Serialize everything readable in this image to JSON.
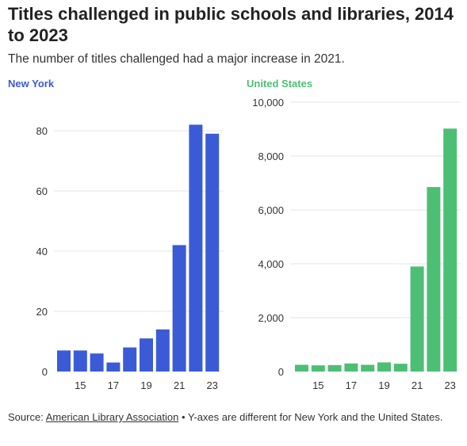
{
  "title": "Titles challenged in public schools and libraries, 2014 to 2023",
  "subtitle": "The number of titles challenged had a major increase in 2021.",
  "footer": {
    "source_prefix": "Source: ",
    "source_link": "American Library Association",
    "note": " • Y-axes are different for New York and the United States."
  },
  "chart_data": [
    {
      "type": "bar",
      "title": "New York",
      "color": "#3b5bd6",
      "years": [
        2014,
        2015,
        2016,
        2017,
        2018,
        2019,
        2020,
        2021,
        2022,
        2023
      ],
      "values": [
        7,
        7,
        6,
        3,
        8,
        11,
        14,
        42,
        82,
        79
      ],
      "ylim": [
        0,
        80
      ],
      "yticks": [
        0,
        20,
        40,
        60,
        80
      ],
      "ytick_labels": [
        "0",
        "20",
        "40",
        "60",
        "80"
      ],
      "xtick_labels": [
        {
          "year": 2015,
          "label": "15"
        },
        {
          "year": 2017,
          "label": "17"
        },
        {
          "year": 2019,
          "label": "19"
        },
        {
          "year": 2021,
          "label": "21"
        },
        {
          "year": 2023,
          "label": "23"
        }
      ],
      "grid": true
    },
    {
      "type": "bar",
      "title": "United States",
      "color": "#4dbf74",
      "years": [
        2014,
        2015,
        2016,
        2017,
        2018,
        2019,
        2020,
        2021,
        2022,
        2023
      ],
      "values": [
        250,
        230,
        240,
        300,
        250,
        340,
        290,
        3900,
        6850,
        9020
      ],
      "ylim": [
        0,
        10000
      ],
      "yticks": [
        0,
        2000,
        4000,
        6000,
        8000,
        10000
      ],
      "ytick_labels": [
        "0",
        "2,000",
        "4,000",
        "6,000",
        "8,000",
        "10,000"
      ],
      "xtick_labels": [
        {
          "year": 2015,
          "label": "15"
        },
        {
          "year": 2017,
          "label": "17"
        },
        {
          "year": 2019,
          "label": "19"
        },
        {
          "year": 2021,
          "label": "21"
        },
        {
          "year": 2023,
          "label": "23"
        }
      ],
      "grid": true
    }
  ]
}
